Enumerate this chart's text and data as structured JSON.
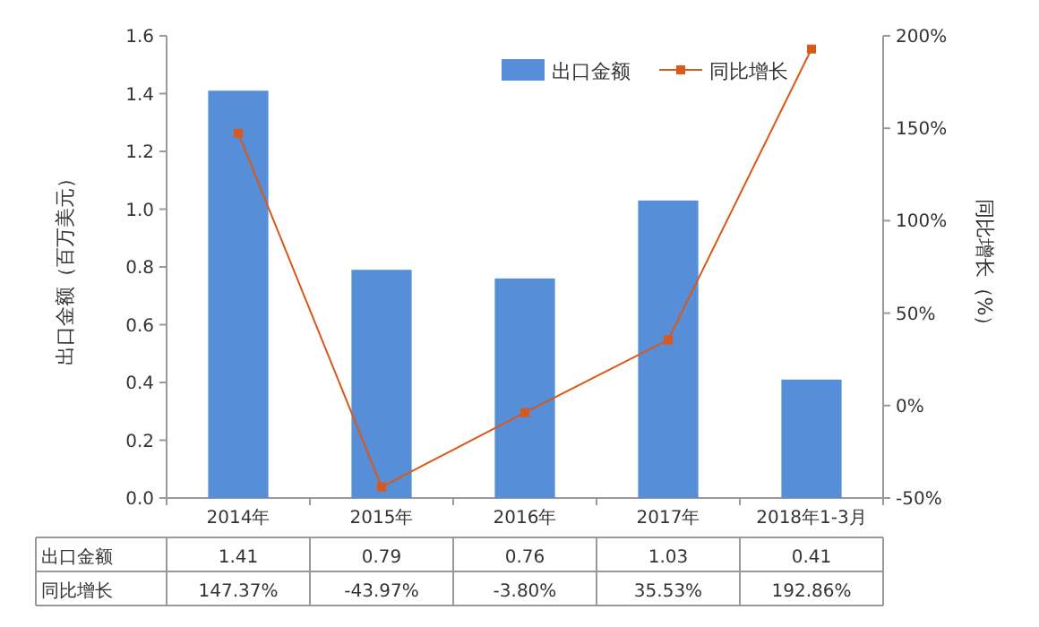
{
  "chart_data": {
    "type": "bar",
    "categories": [
      "2014年",
      "2015年",
      "2016年",
      "2017年",
      "2018年1-3月"
    ],
    "ylabel": "出口金额（百万美元）",
    "y2label": "同比增长（%）",
    "ylim": [
      0,
      1.6
    ],
    "yticks": [
      {
        "value": 0,
        "label": "0.0"
      },
      {
        "value": 0.2,
        "label": "0.2"
      },
      {
        "value": 0.4,
        "label": "0.4"
      },
      {
        "value": 0.6,
        "label": "0.6"
      },
      {
        "value": 0.8,
        "label": "0.8"
      },
      {
        "value": 1.0,
        "label": "1.0"
      },
      {
        "value": 1.2,
        "label": "1.2"
      },
      {
        "value": 1.4,
        "label": "1.4"
      },
      {
        "value": 1.6,
        "label": "1.6"
      }
    ],
    "y2lim": [
      -50,
      200
    ],
    "y2ticks": [
      {
        "value": -50,
        "label": "-50%"
      },
      {
        "value": 0,
        "label": "0%"
      },
      {
        "value": 50,
        "label": "50%"
      },
      {
        "value": 100,
        "label": "100%"
      },
      {
        "value": 150,
        "label": "150%"
      },
      {
        "value": 200,
        "label": "200%"
      }
    ],
    "series": [
      {
        "name": "出口金额",
        "color": "#568ed8",
        "values": [
          1.41,
          0.79,
          0.76,
          1.03,
          0.41
        ],
        "value_labels": [
          "1.41",
          "0.79",
          "0.76",
          "1.03",
          "0.41"
        ]
      },
      {
        "name": "同比增长",
        "type": "line",
        "axis": "y2",
        "color": "#d9581a",
        "marker": "square",
        "values": [
          147.37,
          -43.97,
          -3.8,
          35.53,
          192.86
        ],
        "value_labels": [
          "147.37%",
          "-43.97%",
          "-3.80%",
          "35.53%",
          "192.86%"
        ]
      }
    ],
    "legend": "top right"
  }
}
